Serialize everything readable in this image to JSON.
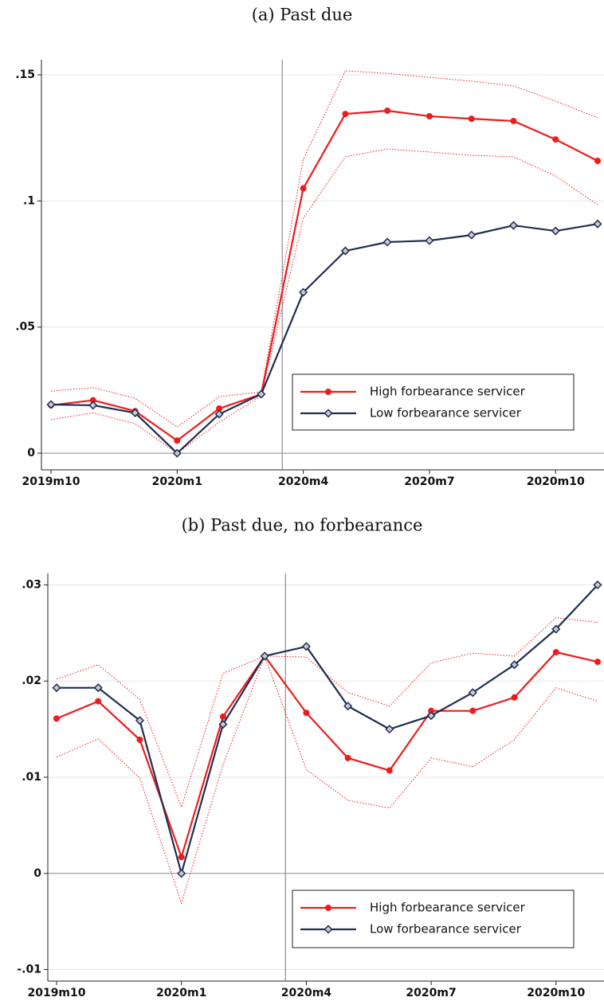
{
  "chart_data": [
    {
      "type": "line",
      "title": "(a) Past due",
      "categories": [
        "2019m10",
        null,
        null,
        "2020m1",
        null,
        null,
        "2020m4",
        null,
        null,
        "2020m7",
        null,
        null,
        "2020m10",
        null
      ],
      "series": [
        {
          "name": "High forbearance servicer",
          "color": "#ee1c1c",
          "marker": "circle",
          "values": [
            0.019,
            0.021,
            0.0167,
            0.005,
            0.0177,
            0.0234,
            0.105,
            0.1345,
            0.1358,
            0.1336,
            0.1326,
            0.1317,
            0.1244,
            0.1159
          ]
        },
        {
          "name": "Low forbearance servicer",
          "color": "#1f2d50",
          "marker": "diamond",
          "values": [
            0.0193,
            0.019,
            0.016,
            0,
            0.0155,
            0.0234,
            0.0638,
            0.0802,
            0.0837,
            0.0843,
            0.0865,
            0.0903,
            0.0881,
            0.0909
          ]
        }
      ],
      "ci": {
        "color": "#ee1c1c",
        "upper": [
          0.0246,
          0.026,
          0.0218,
          0.0104,
          0.0224,
          0.0243,
          0.1165,
          0.1516,
          0.1506,
          0.149,
          0.1475,
          0.1456,
          0.1396,
          0.133
        ],
        "lower": [
          0.0133,
          0.016,
          0.0117,
          0,
          0.0123,
          0.0227,
          0.0932,
          0.1175,
          0.1206,
          0.1194,
          0.1181,
          0.1175,
          0.1099,
          0.0985
        ]
      },
      "ylim": [
        -0.0066,
        0.156
      ],
      "yticks": [
        0,
        {
          "value": 0.05,
          "label": ".05"
        },
        {
          "value": 0.1,
          "label": ".1"
        },
        {
          "value": 0.15,
          "label": ".15"
        }
      ],
      "grid": true,
      "legend": "lower right"
    },
    {
      "type": "line",
      "title": "(b) Past due, no forbearance",
      "categories": [
        "2019m10",
        null,
        null,
        "2020m1",
        null,
        null,
        "2020m4",
        null,
        null,
        "2020m7",
        null,
        null,
        "2020m10",
        null
      ],
      "series": [
        {
          "name": "High forbearance servicer",
          "color": "#ee1c1c",
          "marker": "circle",
          "values": [
            0.0161,
            0.0179,
            0.0139,
            0.0017,
            0.0163,
            0.0226,
            0.0167,
            0.012,
            0.0107,
            0.0169,
            0.0169,
            0.0183,
            0.023,
            0.022
          ]
        },
        {
          "name": "Low forbearance servicer",
          "color": "#1f2d50",
          "marker": "diamond",
          "values": [
            0.0193,
            0.0193,
            0.0159,
            0,
            0.0155,
            0.0226,
            0.0236,
            0.0174,
            0.015,
            0.0164,
            0.0188,
            0.0217,
            0.0254,
            0.03
          ]
        }
      ],
      "ci": {
        "color": "#ee1c1c",
        "upper": [
          0.0202,
          0.0217,
          0.0181,
          0.0069,
          0.0208,
          0.0226,
          0.0225,
          0.0188,
          0.0174,
          0.0219,
          0.0229,
          0.0226,
          0.0266,
          0.0261
        ],
        "lower": [
          0.0121,
          0.014,
          0.0099,
          -0.0031,
          0.0113,
          0.0226,
          0.0108,
          0.0076,
          0.0068,
          0.012,
          0.0111,
          0.0139,
          0.0193,
          0.0179
        ]
      },
      "ylim": [
        -0.0112,
        0.0312
      ],
      "yticks": [
        {
          "value": -0.01,
          "label": "-.01"
        },
        0,
        {
          "value": 0.01,
          "label": ".01"
        },
        {
          "value": 0.02,
          "label": ".02"
        },
        {
          "value": 0.03,
          "label": ".03"
        }
      ],
      "grid": true,
      "legend": "lower right"
    }
  ]
}
